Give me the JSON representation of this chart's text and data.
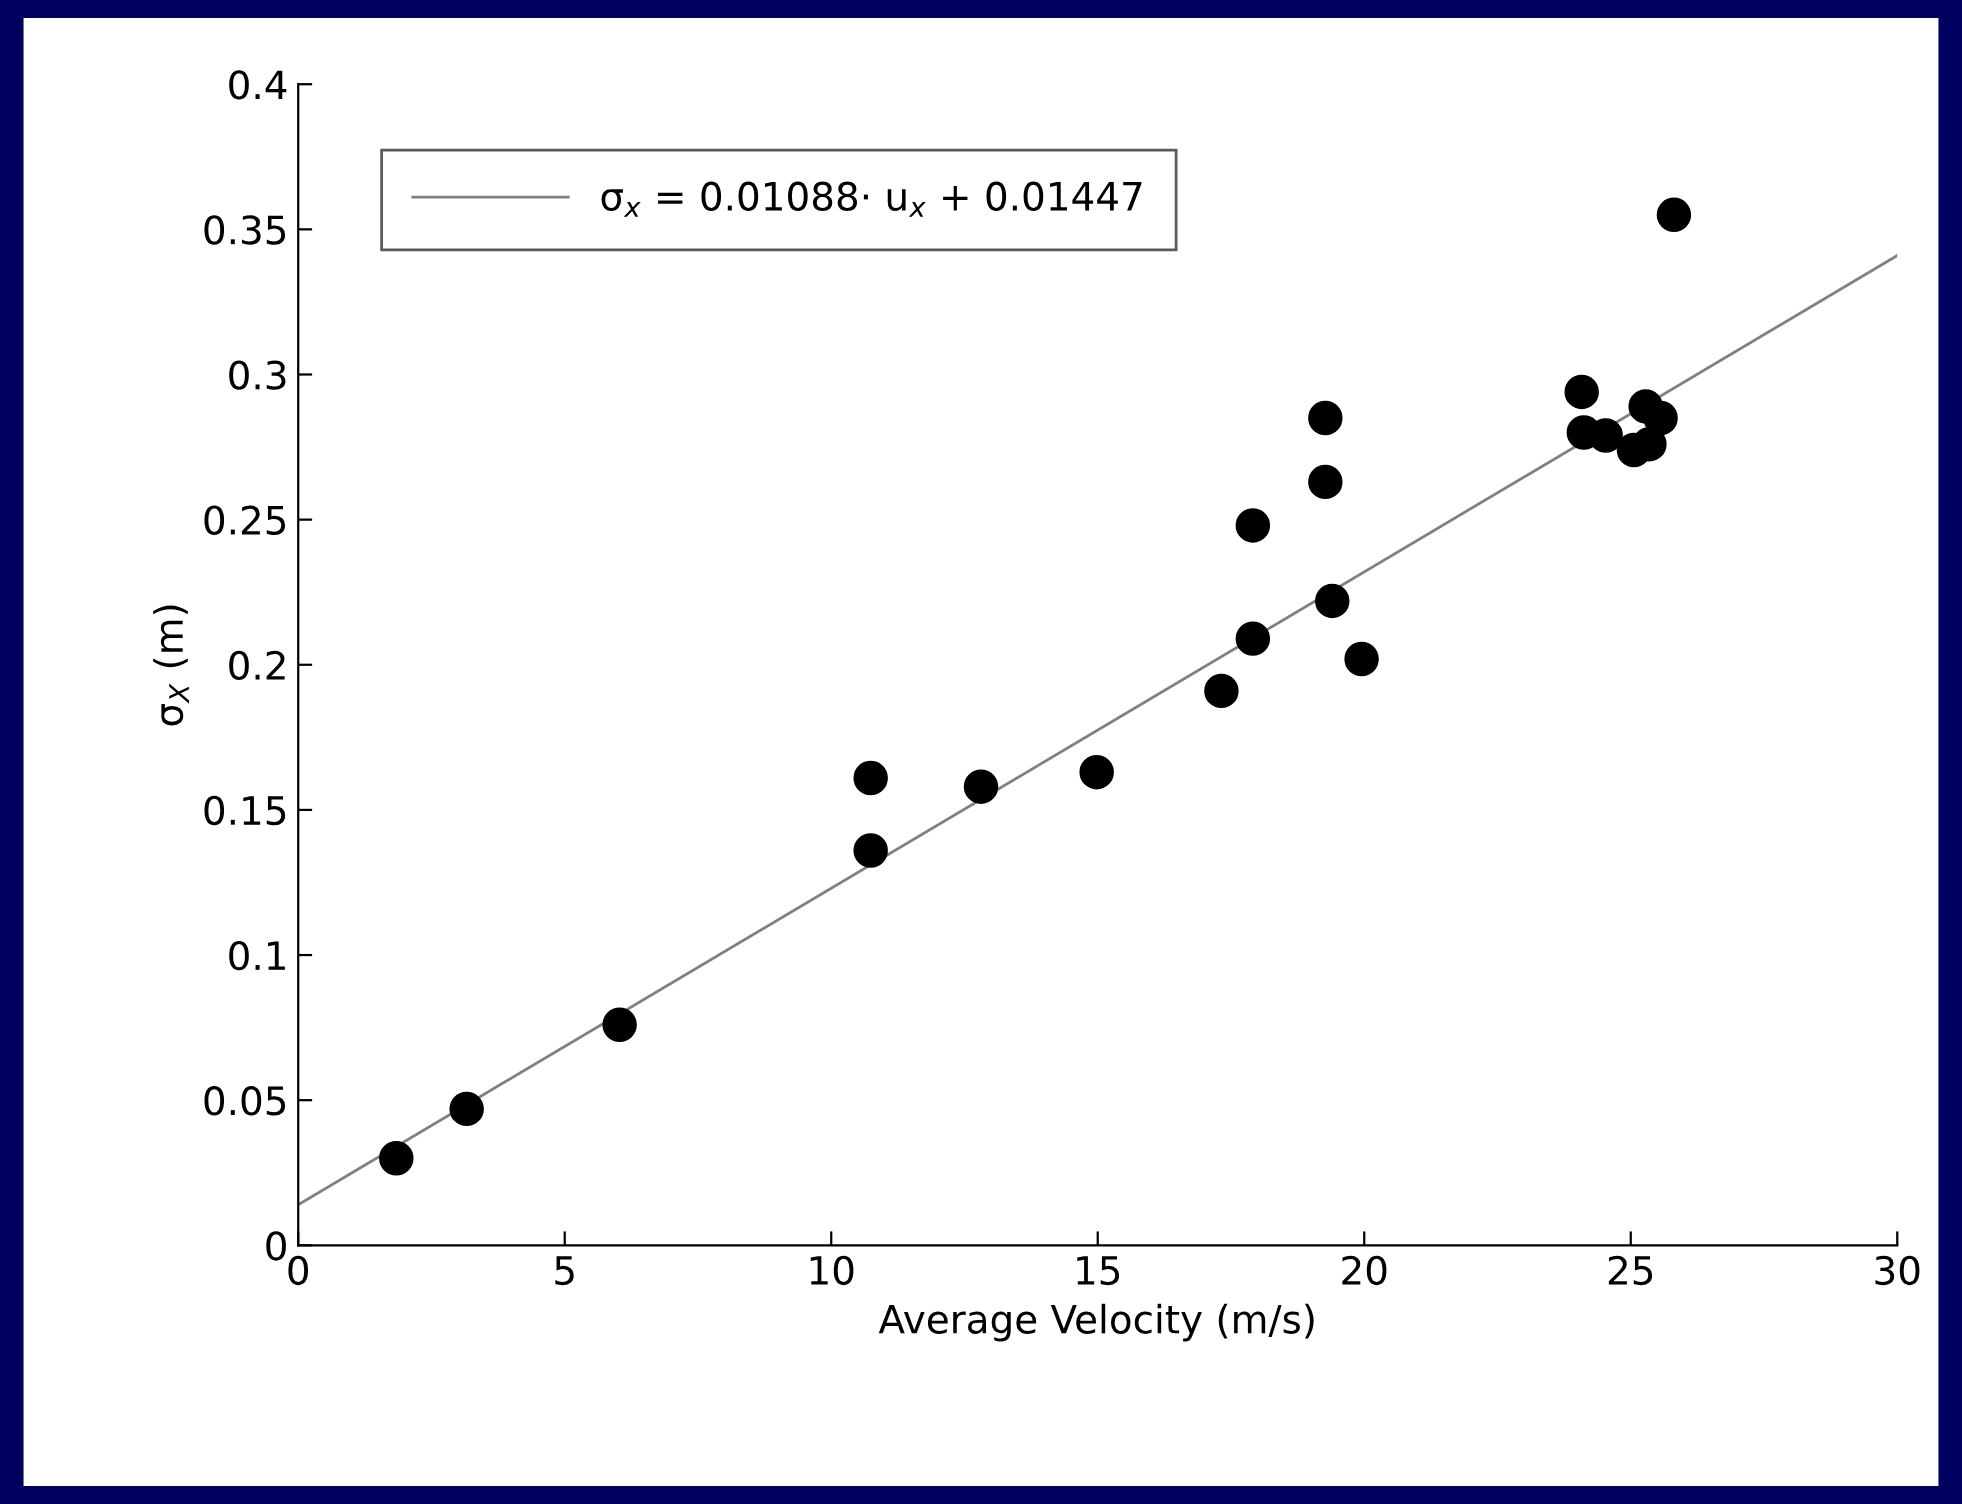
{
  "chart_data": {
    "type": "scatter",
    "xlabel": "Average Velocity (m/s)",
    "ylabel": "σ$_{X}$ (m)",
    "xlim": [
      0,
      30
    ],
    "xticks": [
      0,
      5,
      10,
      15,
      20,
      25,
      30
    ],
    "ylim": [
      0,
      0.4
    ],
    "yticks": [
      0,
      0.05,
      0.1,
      0.15,
      0.2,
      0.25,
      0.3,
      0.35,
      0.4
    ],
    "grid": false,
    "legend": "top left",
    "series": [
      {
        "marker": "circle",
        "color": "#000000",
        "x": [
          1.84,
          3.16,
          6.03,
          10.74,
          10.74,
          12.81,
          14.98,
          17.32,
          17.91,
          17.91,
          19.27,
          19.27,
          19.4,
          19.95,
          24.08,
          24.12,
          24.53,
          25.28,
          25.56,
          25.06,
          25.35,
          25.81
        ],
        "values": [
          0.03,
          0.047,
          0.076,
          0.161,
          0.136,
          0.158,
          0.163,
          0.191,
          0.209,
          0.248,
          0.285,
          0.263,
          0.222,
          0.202,
          0.294,
          0.28,
          0.279,
          0.289,
          0.285,
          0.274,
          0.276,
          0.355
        ]
      },
      {
        "type": "line",
        "name": "σ$_{x}$ = 0.01088· u$_{x}$ + 0.01447",
        "color": "#808080",
        "x": [
          0,
          30
        ],
        "values": [
          0.014,
          0.341
        ]
      }
    ]
  }
}
